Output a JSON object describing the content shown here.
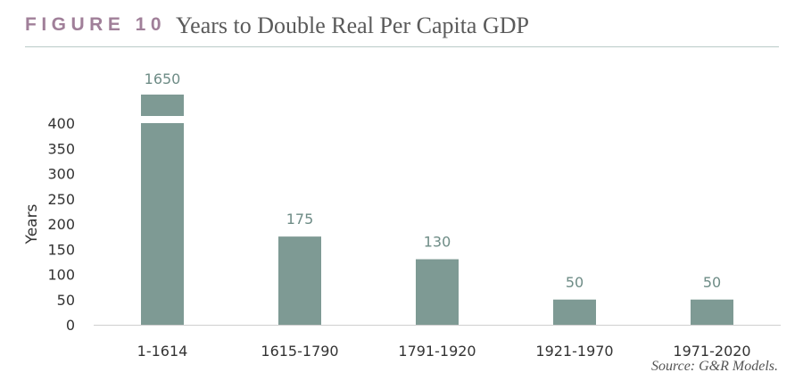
{
  "figure": {
    "label": "FIGURE 10",
    "title": "Years to Double Real Per Capita GDP",
    "source": "Source: G&R Models."
  },
  "colors": {
    "bar": "#7e9a94",
    "data_label": "#6e8c86",
    "figure_label": "#a07f99",
    "rule": "#b9cbc7"
  },
  "chart_data": {
    "type": "bar",
    "categories": [
      "1-1614",
      "1615-1790",
      "1791-1920",
      "1921-1970",
      "1971-2020"
    ],
    "values": [
      1650,
      175,
      130,
      50,
      50
    ],
    "data_labels": [
      "1650",
      "175",
      "130",
      "50",
      "50"
    ],
    "ylabel": "Years",
    "ylim": [
      0,
      400
    ],
    "yticks": [
      0,
      50,
      100,
      150,
      200,
      250,
      300,
      350,
      400
    ],
    "axis_break": "first bar truncated above 400",
    "grid": false,
    "legend": "none"
  }
}
